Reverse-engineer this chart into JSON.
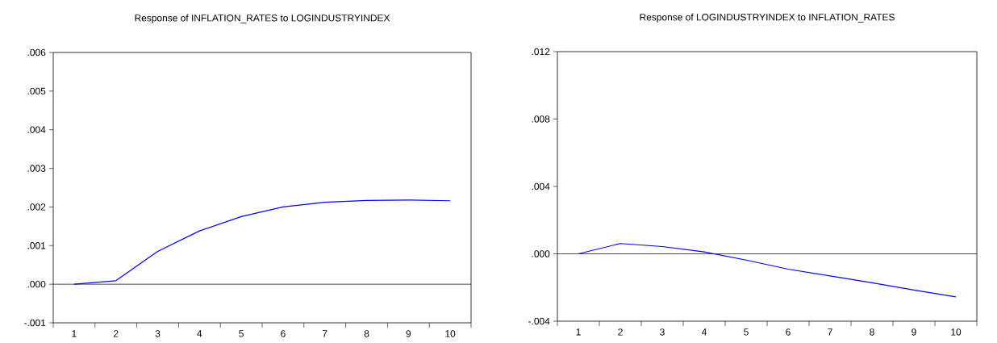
{
  "chart_data": [
    {
      "type": "line",
      "title": "Response of INFLATION_RATES to LOGINDUSTRYINDEX",
      "categories": [
        "1",
        "2",
        "3",
        "4",
        "5",
        "6",
        "7",
        "8",
        "9",
        "10"
      ],
      "series": [
        {
          "color": "#0000ff",
          "values": [
            0.0,
            9e-05,
            0.00085,
            0.00138,
            0.00175,
            0.002,
            0.00212,
            0.00217,
            0.00218,
            0.00216
          ]
        }
      ],
      "ylim": [
        -0.001,
        0.006
      ],
      "yticks": [
        {
          "value": -0.001,
          "label": "-.001"
        },
        {
          "value": 0.0,
          "label": ".000"
        },
        {
          "value": 0.001,
          "label": ".001"
        },
        {
          "value": 0.002,
          "label": ".002"
        },
        {
          "value": 0.003,
          "label": ".003"
        },
        {
          "value": 0.004,
          "label": ".004"
        },
        {
          "value": 0.005,
          "label": ".005"
        },
        {
          "value": 0.006,
          "label": ".006"
        }
      ],
      "ref_lines": [
        {
          "axis": "y",
          "value": 0,
          "color": "#000000"
        }
      ]
    },
    {
      "type": "line",
      "title": "Response of LOGINDUSTRYINDEX to INFLATION_RATES",
      "categories": [
        "1",
        "2",
        "3",
        "4",
        "5",
        "6",
        "7",
        "8",
        "9",
        "10"
      ],
      "series": [
        {
          "color": "#0000ff",
          "values": [
            0.0,
            0.00061,
            0.00043,
            0.00011,
            -0.00037,
            -0.00091,
            -0.00131,
            -0.00172,
            -0.00215,
            -0.00256
          ]
        }
      ],
      "ylim": [
        -0.004,
        0.012
      ],
      "yticks": [
        {
          "value": -0.004,
          "label": "-.004"
        },
        {
          "value": 0.0,
          "label": ".000"
        },
        {
          "value": 0.004,
          "label": ".004"
        },
        {
          "value": 0.008,
          "label": ".008"
        },
        {
          "value": 0.012,
          "label": ".012"
        }
      ],
      "ref_lines": [
        {
          "axis": "y",
          "value": 0,
          "color": "#000000"
        }
      ]
    }
  ]
}
